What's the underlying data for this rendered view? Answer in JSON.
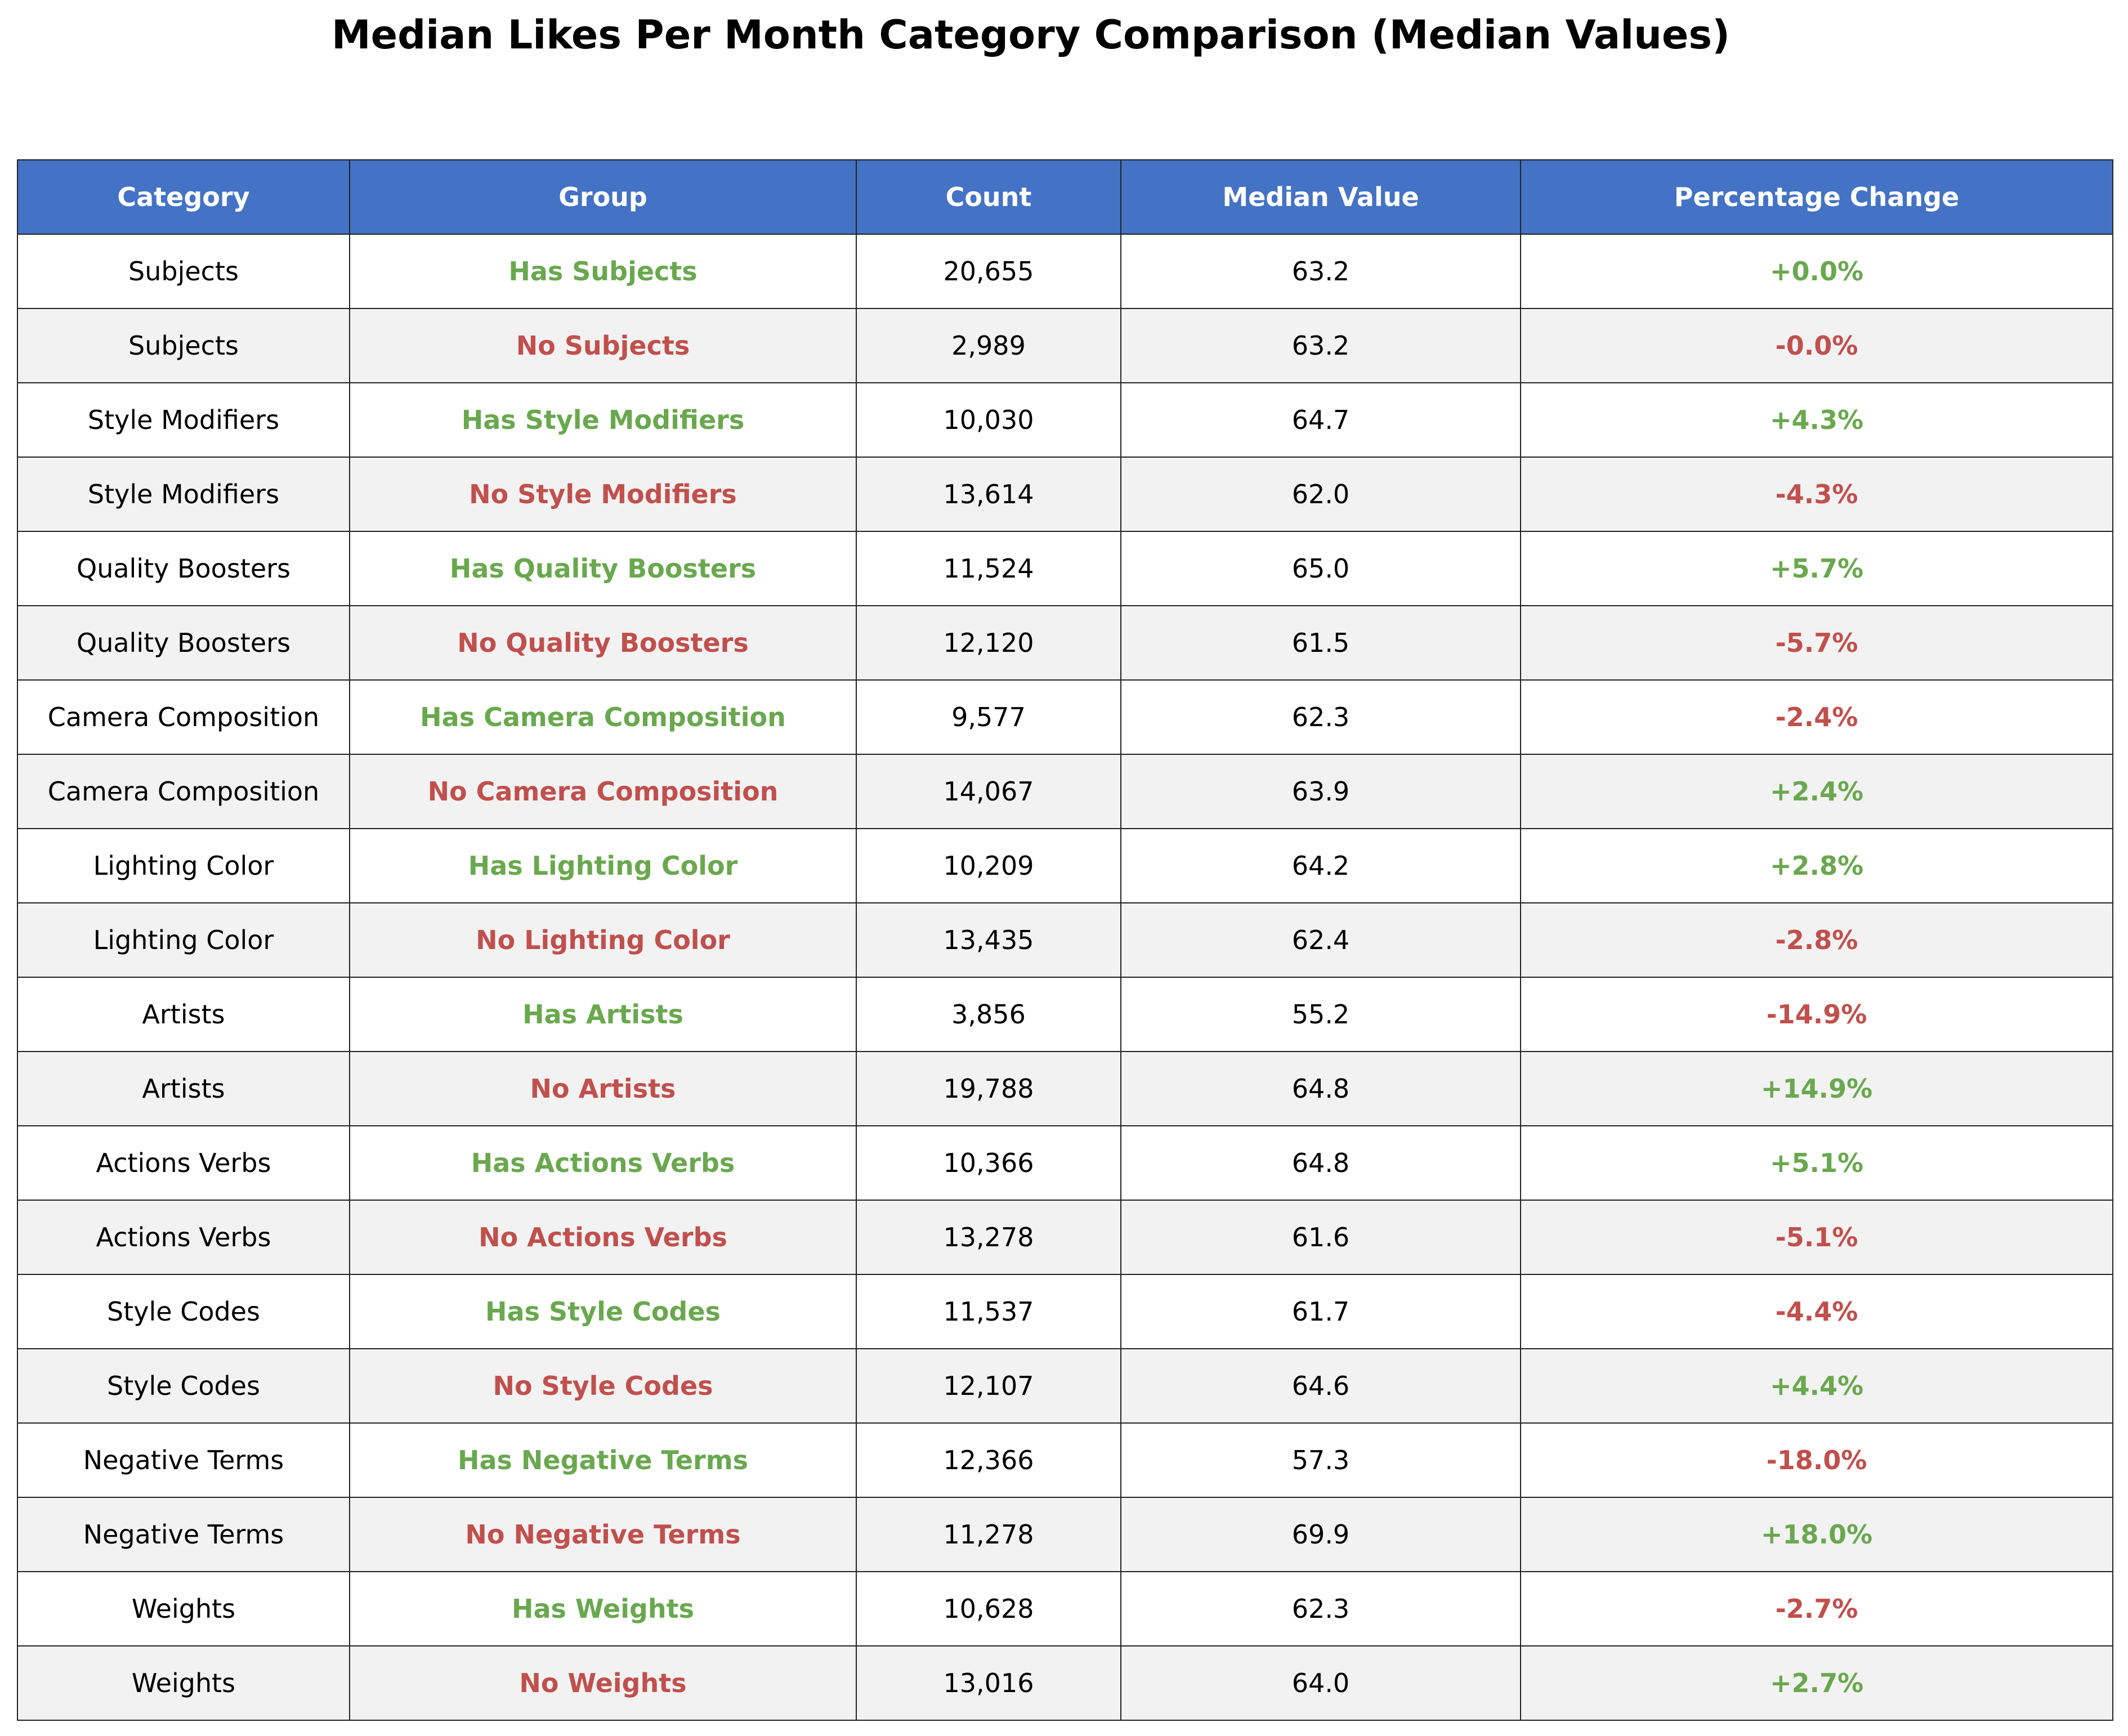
{
  "chart_data": {
    "type": "table",
    "title": "Median Likes Per Month Category Comparison (Median Values)",
    "columns": [
      "Category",
      "Group",
      "Count",
      "Median Value",
      "Percentage Change"
    ],
    "colors": {
      "header_bg": "#4472c4",
      "header_text": "#ffffff",
      "positive": "#6aa84f",
      "negative": "#c0504d",
      "row_alt": "#f2f2f2",
      "row_base": "#ffffff"
    },
    "rows": [
      {
        "category": "Subjects",
        "group": "Has Subjects",
        "group_status": "has",
        "count": "20,655",
        "median": "63.2",
        "pct": "+0.0%",
        "pct_sign": "positive"
      },
      {
        "category": "Subjects",
        "group": "No Subjects",
        "group_status": "no",
        "count": "2,989",
        "median": "63.2",
        "pct": "-0.0%",
        "pct_sign": "negative"
      },
      {
        "category": "Style Modifiers",
        "group": "Has Style Modifiers",
        "group_status": "has",
        "count": "10,030",
        "median": "64.7",
        "pct": "+4.3%",
        "pct_sign": "positive"
      },
      {
        "category": "Style Modifiers",
        "group": "No Style Modifiers",
        "group_status": "no",
        "count": "13,614",
        "median": "62.0",
        "pct": "-4.3%",
        "pct_sign": "negative"
      },
      {
        "category": "Quality Boosters",
        "group": "Has Quality Boosters",
        "group_status": "has",
        "count": "11,524",
        "median": "65.0",
        "pct": "+5.7%",
        "pct_sign": "positive"
      },
      {
        "category": "Quality Boosters",
        "group": "No Quality Boosters",
        "group_status": "no",
        "count": "12,120",
        "median": "61.5",
        "pct": "-5.7%",
        "pct_sign": "negative"
      },
      {
        "category": "Camera Composition",
        "group": "Has Camera Composition",
        "group_status": "has",
        "count": "9,577",
        "median": "62.3",
        "pct": "-2.4%",
        "pct_sign": "negative"
      },
      {
        "category": "Camera Composition",
        "group": "No Camera Composition",
        "group_status": "no",
        "count": "14,067",
        "median": "63.9",
        "pct": "+2.4%",
        "pct_sign": "positive"
      },
      {
        "category": "Lighting Color",
        "group": "Has Lighting Color",
        "group_status": "has",
        "count": "10,209",
        "median": "64.2",
        "pct": "+2.8%",
        "pct_sign": "positive"
      },
      {
        "category": "Lighting Color",
        "group": "No Lighting Color",
        "group_status": "no",
        "count": "13,435",
        "median": "62.4",
        "pct": "-2.8%",
        "pct_sign": "negative"
      },
      {
        "category": "Artists",
        "group": "Has Artists",
        "group_status": "has",
        "count": "3,856",
        "median": "55.2",
        "pct": "-14.9%",
        "pct_sign": "negative"
      },
      {
        "category": "Artists",
        "group": "No Artists",
        "group_status": "no",
        "count": "19,788",
        "median": "64.8",
        "pct": "+14.9%",
        "pct_sign": "positive"
      },
      {
        "category": "Actions Verbs",
        "group": "Has Actions Verbs",
        "group_status": "has",
        "count": "10,366",
        "median": "64.8",
        "pct": "+5.1%",
        "pct_sign": "positive"
      },
      {
        "category": "Actions Verbs",
        "group": "No Actions Verbs",
        "group_status": "no",
        "count": "13,278",
        "median": "61.6",
        "pct": "-5.1%",
        "pct_sign": "negative"
      },
      {
        "category": "Style Codes",
        "group": "Has Style Codes",
        "group_status": "has",
        "count": "11,537",
        "median": "61.7",
        "pct": "-4.4%",
        "pct_sign": "negative"
      },
      {
        "category": "Style Codes",
        "group": "No Style Codes",
        "group_status": "no",
        "count": "12,107",
        "median": "64.6",
        "pct": "+4.4%",
        "pct_sign": "positive"
      },
      {
        "category": "Negative Terms",
        "group": "Has Negative Terms",
        "group_status": "has",
        "count": "12,366",
        "median": "57.3",
        "pct": "-18.0%",
        "pct_sign": "negative"
      },
      {
        "category": "Negative Terms",
        "group": "No Negative Terms",
        "group_status": "no",
        "count": "11,278",
        "median": "69.9",
        "pct": "+18.0%",
        "pct_sign": "positive"
      },
      {
        "category": "Weights",
        "group": "Has Weights",
        "group_status": "has",
        "count": "10,628",
        "median": "62.3",
        "pct": "-2.7%",
        "pct_sign": "negative"
      },
      {
        "category": "Weights",
        "group": "No Weights",
        "group_status": "no",
        "count": "13,016",
        "median": "64.0",
        "pct": "+2.7%",
        "pct_sign": "positive"
      }
    ]
  }
}
